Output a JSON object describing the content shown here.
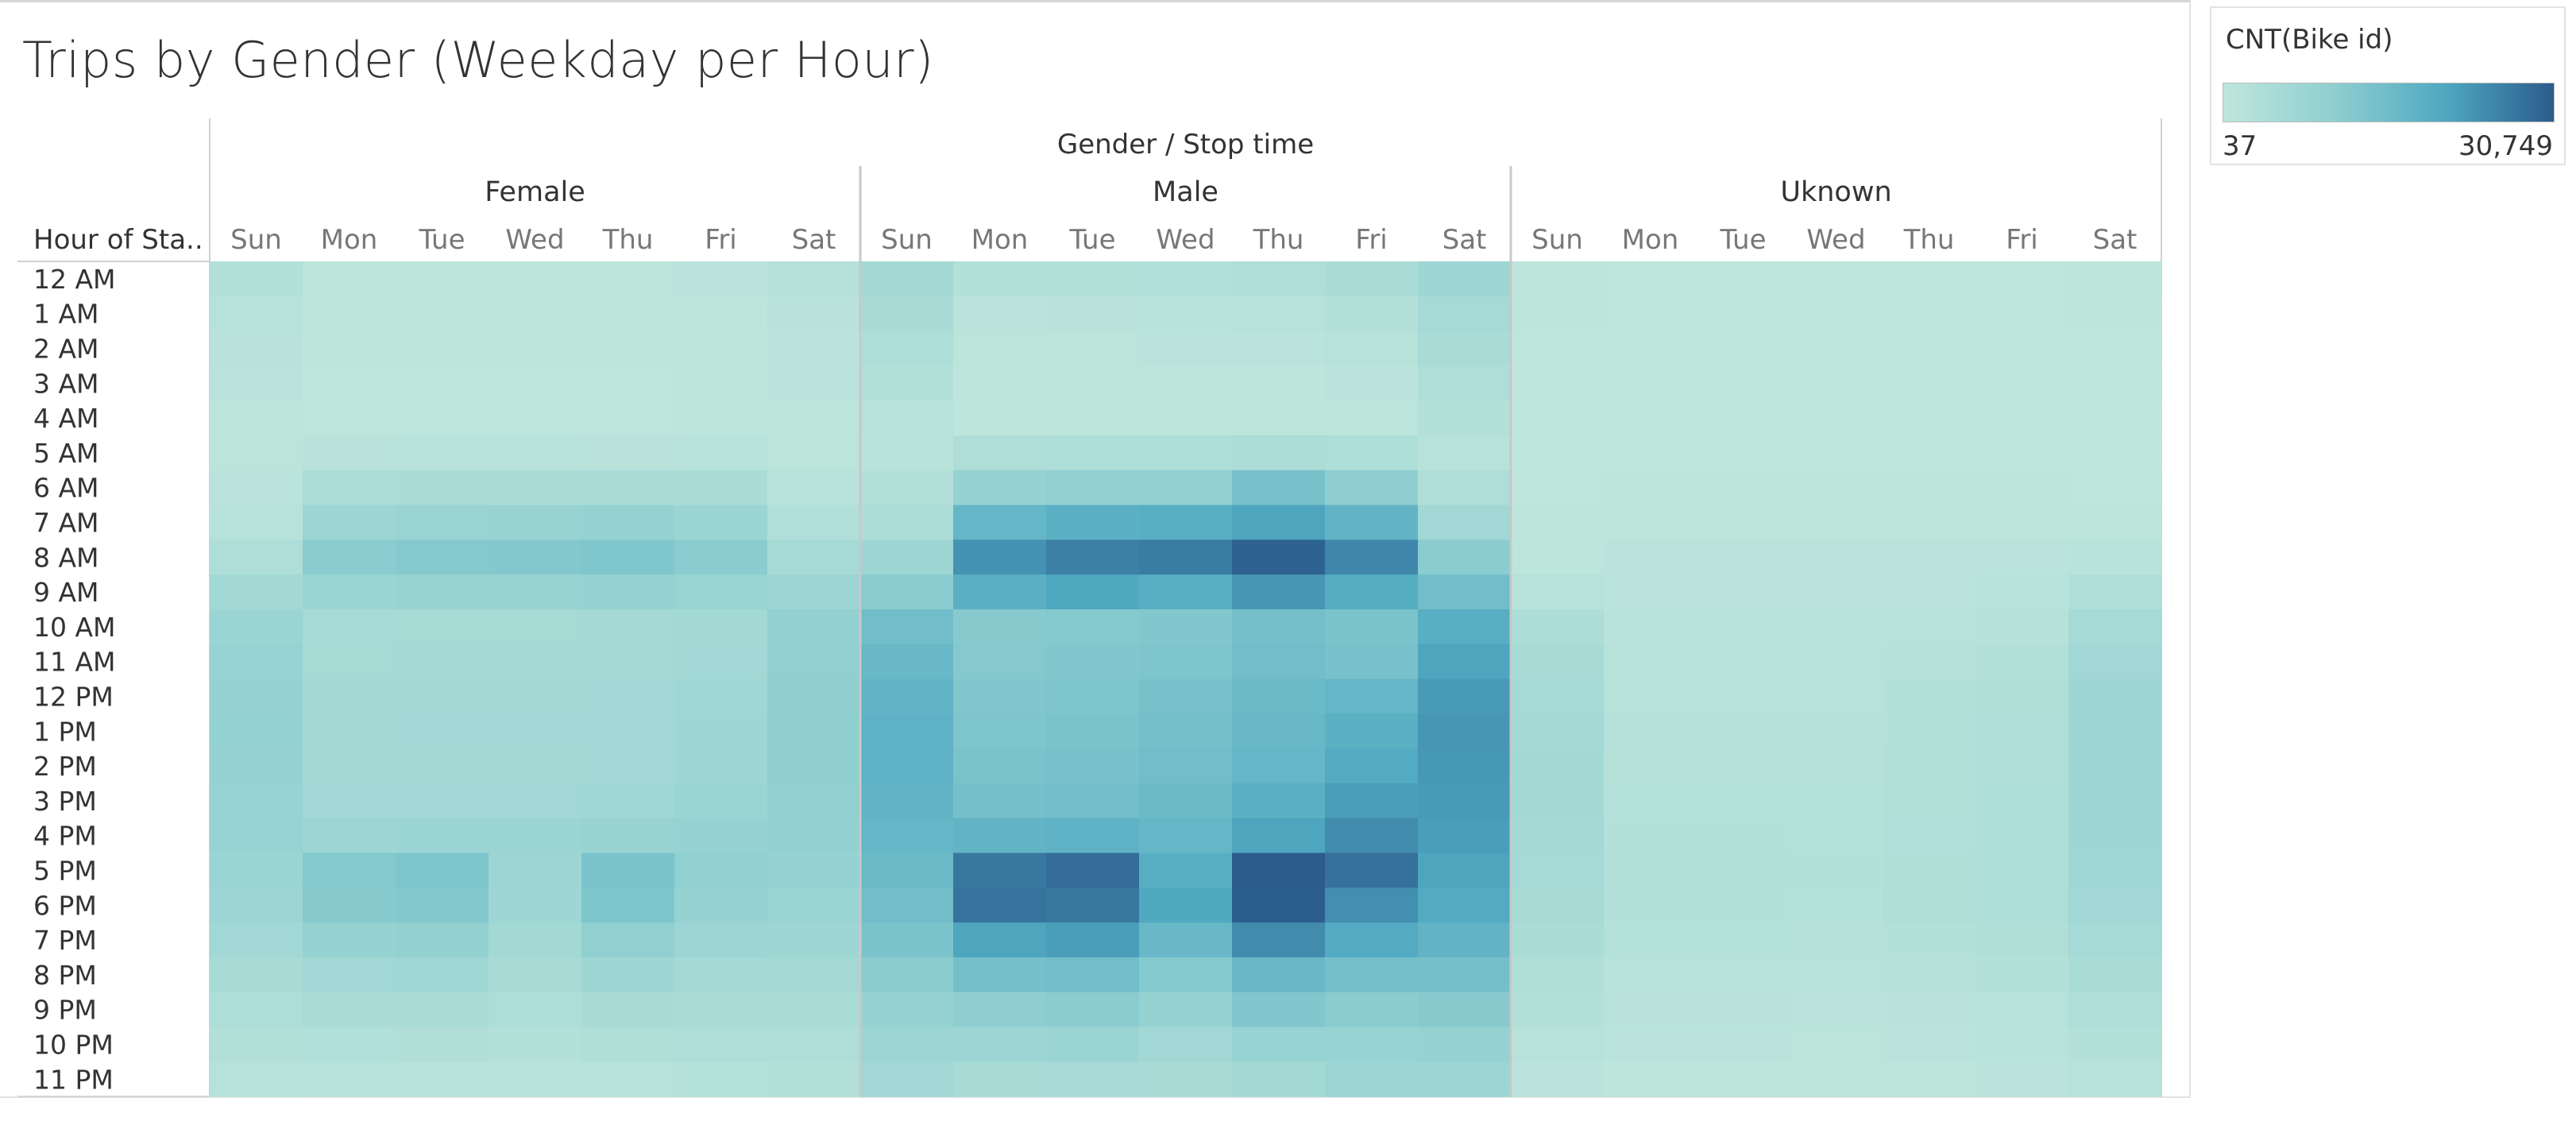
{
  "title": "Trips by Gender (Weekday per Hour)",
  "legend": {
    "title": "CNT(Bike id)",
    "min_label": "37",
    "max_label": "30,749",
    "min_value": 37,
    "max_value": 30749,
    "colors": [
      "#bfe6dc",
      "#8fcfd0",
      "#4fa9c1",
      "#2b5c8c"
    ]
  },
  "chart_data": {
    "type": "heatmap",
    "column_header": "Gender / Stop time",
    "row_header": "Hour of Sta..",
    "genders": [
      "Female",
      "Male",
      "Uknown"
    ],
    "days": [
      "Sun",
      "Mon",
      "Tue",
      "Wed",
      "Thu",
      "Fri",
      "Sat"
    ],
    "hours": [
      "12 AM",
      "1 AM",
      "2 AM",
      "3 AM",
      "4 AM",
      "5 AM",
      "6 AM",
      "7 AM",
      "8 AM",
      "9 AM",
      "10 AM",
      "11 AM",
      "12 PM",
      "1 PM",
      "2 PM",
      "3 PM",
      "4 PM",
      "5 PM",
      "6 PM",
      "7 PM",
      "8 PM",
      "9 PM",
      "10 PM",
      "11 PM"
    ],
    "values": {
      "Female": [
        [
          2500,
          700,
          800,
          800,
          900,
          1000,
          2200
        ],
        [
          2000,
          400,
          400,
          400,
          500,
          600,
          1600
        ],
        [
          1600,
          300,
          300,
          300,
          300,
          400,
          1300
        ],
        [
          1200,
          200,
          200,
          200,
          200,
          300,
          1000
        ],
        [
          900,
          200,
          200,
          200,
          200,
          300,
          800
        ],
        [
          800,
          1400,
          1500,
          1500,
          1600,
          1500,
          900
        ],
        [
          1000,
          4000,
          4300,
          4400,
          4500,
          4200,
          1500
        ],
        [
          1800,
          7500,
          8200,
          8400,
          8800,
          7800,
          3000
        ],
        [
          3500,
          11000,
          12000,
          12200,
          12600,
          11000,
          5500
        ],
        [
          6000,
          8000,
          8300,
          8400,
          8800,
          8200,
          7500
        ],
        [
          8000,
          5500,
          5600,
          5600,
          5800,
          6000,
          9500
        ],
        [
          8500,
          5600,
          5700,
          5700,
          5900,
          6200,
          10000
        ],
        [
          8800,
          6000,
          6100,
          6100,
          6300,
          6800,
          10200
        ],
        [
          8900,
          6100,
          6200,
          6200,
          6500,
          7000,
          10300
        ],
        [
          8800,
          6000,
          6100,
          6100,
          6400,
          7200,
          10200
        ],
        [
          8700,
          6300,
          6400,
          6400,
          6800,
          7800,
          10000
        ],
        [
          8500,
          7500,
          7800,
          7900,
          8300,
          9000,
          9500
        ],
        [
          8000,
          12000,
          13000,
          7500,
          13500,
          10000,
          8800
        ],
        [
          7500,
          11500,
          12200,
          7200,
          12800,
          9000,
          8000
        ],
        [
          6500,
          9000,
          9400,
          6000,
          9800,
          7500,
          7000
        ],
        [
          5000,
          6500,
          6800,
          4800,
          7000,
          5800,
          5800
        ],
        [
          3800,
          4500,
          4700,
          3800,
          5000,
          4500,
          4500
        ],
        [
          2800,
          3000,
          3100,
          2700,
          3300,
          3400,
          3500
        ],
        [
          2000,
          1700,
          1800,
          1800,
          2000,
          2400,
          2800
        ]
      ],
      "Male": [
        [
          6000,
          2500,
          2800,
          3000,
          3500,
          4500,
          7000
        ],
        [
          4800,
          1200,
          1400,
          1500,
          1700,
          2500,
          5500
        ],
        [
          3800,
          800,
          900,
          1000,
          1100,
          1700,
          4500
        ],
        [
          2800,
          500,
          600,
          600,
          700,
          1100,
          3500
        ],
        [
          2000,
          500,
          500,
          500,
          600,
          800,
          2500
        ],
        [
          1500,
          3500,
          3700,
          3700,
          4000,
          3800,
          1800
        ],
        [
          2500,
          9000,
          9800,
          10000,
          14000,
          10500,
          3500
        ],
        [
          4000,
          17000,
          18500,
          19000,
          21000,
          17500,
          6500
        ],
        [
          7000,
          23500,
          26000,
          26500,
          30000,
          25000,
          11000
        ],
        [
          11000,
          18500,
          20500,
          19000,
          23000,
          19500,
          15000
        ],
        [
          15000,
          11500,
          12000,
          12500,
          14500,
          13500,
          19000
        ],
        [
          16500,
          11800,
          12300,
          12800,
          15000,
          14000,
          21000
        ],
        [
          17500,
          12500,
          13000,
          14000,
          16000,
          17000,
          22500
        ],
        [
          18000,
          13000,
          13500,
          14500,
          16500,
          18500,
          23000
        ],
        [
          18000,
          13500,
          14000,
          15000,
          17000,
          20000,
          22800
        ],
        [
          17500,
          14500,
          15000,
          16000,
          18500,
          22000,
          22500
        ],
        [
          17000,
          17500,
          18000,
          17000,
          21000,
          24500,
          22000
        ],
        [
          16000,
          27000,
          28500,
          19000,
          30749,
          28000,
          21000
        ],
        [
          15000,
          27500,
          27000,
          20500,
          30500,
          24000,
          20000
        ],
        [
          13500,
          21000,
          22000,
          16500,
          24500,
          20000,
          17500
        ],
        [
          11000,
          14500,
          15000,
          12000,
          16500,
          14500,
          14500
        ],
        [
          9000,
          10500,
          11000,
          9000,
          12500,
          11000,
          11500
        ],
        [
          7500,
          7500,
          8000,
          6500,
          8500,
          8500,
          9000
        ],
        [
          6500,
          5000,
          5200,
          5000,
          6000,
          7500,
          7500
        ]
      ],
      "Uknown": [
        [
          400,
          150,
          150,
          150,
          150,
          150,
          400
        ],
        [
          300,
          100,
          100,
          100,
          100,
          100,
          300
        ],
        [
          200,
          50,
          50,
          50,
          50,
          50,
          200
        ],
        [
          150,
          37,
          37,
          37,
          37,
          37,
          150
        ],
        [
          100,
          37,
          37,
          37,
          37,
          37,
          100
        ],
        [
          100,
          150,
          150,
          150,
          150,
          150,
          100
        ],
        [
          150,
          400,
          400,
          400,
          400,
          400,
          200
        ],
        [
          300,
          700,
          700,
          700,
          700,
          700,
          600
        ],
        [
          600,
          1000,
          1000,
          1000,
          1000,
          1000,
          1500
        ],
        [
          2000,
          1000,
          1000,
          1000,
          1000,
          1500,
          3500
        ],
        [
          4000,
          1500,
          1500,
          1500,
          1800,
          2200,
          5500
        ],
        [
          5000,
          1800,
          1800,
          1800,
          2200,
          2800,
          6500
        ],
        [
          5500,
          2000,
          2000,
          2000,
          2500,
          3200,
          7000
        ],
        [
          5800,
          2100,
          2100,
          2100,
          2600,
          3400,
          7200
        ],
        [
          6000,
          2200,
          2200,
          2200,
          2800,
          3500,
          7300
        ],
        [
          6000,
          2300,
          2300,
          2300,
          2900,
          3600,
          7200
        ],
        [
          5800,
          2500,
          2500,
          2400,
          3000,
          3700,
          7000
        ],
        [
          5500,
          2800,
          2800,
          2500,
          3200,
          3800,
          6800
        ],
        [
          5000,
          2700,
          2700,
          2400,
          3100,
          3600,
          6500
        ],
        [
          4200,
          2300,
          2300,
          2100,
          2700,
          3200,
          5500
        ],
        [
          3300,
          1800,
          1800,
          1700,
          2100,
          2600,
          4500
        ],
        [
          2500,
          1400,
          1400,
          1300,
          1600,
          2000,
          3500
        ],
        [
          1800,
          1000,
          1000,
          900,
          1100,
          1500,
          2600
        ],
        [
          1200,
          600,
          600,
          600,
          700,
          1100,
          1800
        ]
      ]
    }
  }
}
